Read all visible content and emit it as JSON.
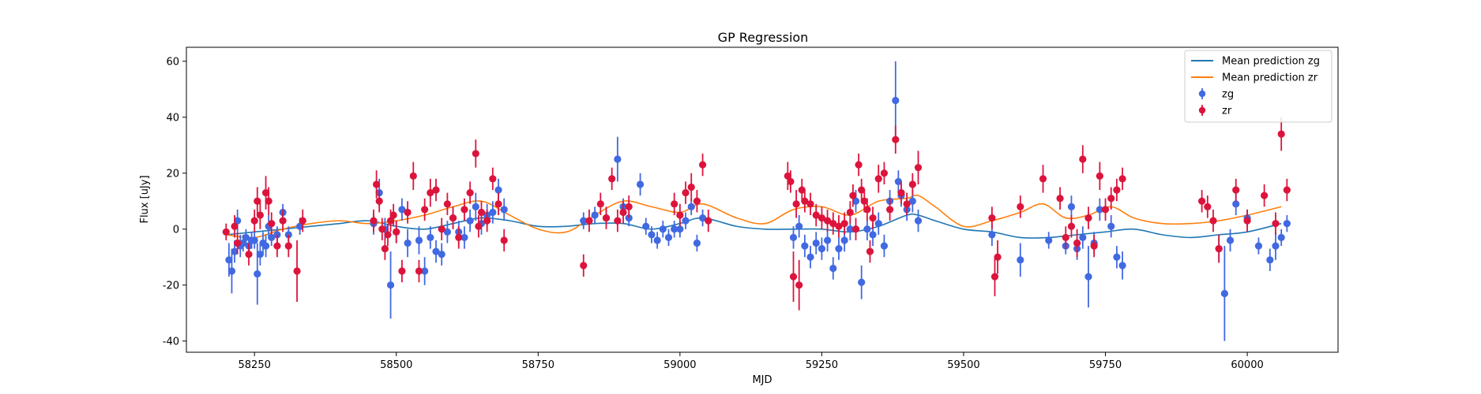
{
  "chart_data": {
    "type": "scatter",
    "title": "GP Regression",
    "xlabel": "MJD",
    "ylabel": "Flux [uJy]",
    "xlim": [
      58130,
      60160
    ],
    "ylim": [
      -44,
      65
    ],
    "xticks": [
      58250,
      58500,
      58750,
      59000,
      59250,
      59500,
      59750,
      60000
    ],
    "yticks": [
      -40,
      -20,
      0,
      20,
      40,
      60
    ],
    "grid": false,
    "legend_position": "top-right",
    "legend": [
      {
        "label": "Mean prediction zg",
        "kind": "line",
        "color": "#1f77b4"
      },
      {
        "label": "Mean prediction zr",
        "kind": "line",
        "color": "#ff7f0e"
      },
      {
        "label": "zg",
        "kind": "errorbar",
        "color": "#4169e1"
      },
      {
        "label": "zr",
        "kind": "errorbar",
        "color": "#dc143c"
      }
    ],
    "series": [
      {
        "name": "Mean prediction zg",
        "kind": "line",
        "color": "#1f77b4",
        "x": [
          58200,
          58250,
          58300,
          58350,
          58400,
          58450,
          58500,
          58550,
          58600,
          58650,
          58700,
          58750,
          58800,
          58850,
          58900,
          58950,
          59000,
          59040,
          59100,
          59150,
          59200,
          59250,
          59300,
          59350,
          59400,
          59420,
          59450,
          59500,
          59550,
          59600,
          59650,
          59700,
          59750,
          59800,
          59850,
          59900,
          59950,
          60000,
          60060
        ],
        "y": [
          -2,
          -1,
          0,
          1,
          2,
          3,
          1,
          0,
          2,
          4,
          3,
          1,
          1,
          2,
          2,
          0,
          2,
          4,
          1,
          0,
          0,
          0,
          -1,
          1,
          5,
          5,
          3,
          0,
          -1,
          -3,
          -3,
          -2,
          -1,
          0,
          -2,
          -3,
          -2,
          -1,
          2
        ]
      },
      {
        "name": "Mean prediction zr",
        "kind": "line",
        "color": "#ff7f0e",
        "x": [
          58200,
          58250,
          58300,
          58350,
          58400,
          58450,
          58500,
          58550,
          58600,
          58650,
          58700,
          58750,
          58800,
          58850,
          58900,
          58950,
          59000,
          59040,
          59100,
          59150,
          59200,
          59250,
          59300,
          59350,
          59400,
          59420,
          59450,
          59500,
          59550,
          59600,
          59640,
          59680,
          59720,
          59760,
          59800,
          59850,
          59900,
          59950,
          60000,
          60060
        ],
        "y": [
          -2,
          -3,
          0,
          2,
          3,
          2,
          3,
          5,
          8,
          10,
          5,
          0,
          -1,
          5,
          10,
          8,
          6,
          9,
          4,
          2,
          7,
          8,
          5,
          10,
          11,
          12,
          8,
          1,
          3,
          6,
          9,
          4,
          5,
          8,
          4,
          2,
          2,
          3,
          5,
          8
        ]
      },
      {
        "name": "zg",
        "kind": "errorbar",
        "color": "#4169e1",
        "x": [
          58205,
          58210,
          58215,
          58220,
          58225,
          58230,
          58235,
          58240,
          58245,
          58250,
          58255,
          58260,
          58265,
          58270,
          58275,
          58280,
          58290,
          58300,
          58310,
          58330,
          58460,
          58470,
          58480,
          58490,
          58500,
          58510,
          58520,
          58540,
          58550,
          58560,
          58570,
          58580,
          58590,
          58600,
          58610,
          58620,
          58630,
          58640,
          58650,
          58660,
          58670,
          58680,
          58690,
          58830,
          58850,
          58870,
          58890,
          58900,
          58910,
          58930,
          58940,
          58950,
          58960,
          58970,
          58980,
          58990,
          59000,
          59010,
          59020,
          59030,
          59040,
          59200,
          59210,
          59220,
          59230,
          59240,
          59250,
          59260,
          59270,
          59280,
          59290,
          59300,
          59310,
          59320,
          59330,
          59340,
          59350,
          59360,
          59370,
          59380,
          59385,
          59390,
          59400,
          59410,
          59420,
          59550,
          59600,
          59650,
          59680,
          59690,
          59700,
          59710,
          59720,
          59730,
          59740,
          59760,
          59770,
          59780,
          59950,
          59960,
          59970,
          59980,
          60000,
          60020,
          60040,
          60050,
          60060,
          60070
        ],
        "y": [
          -11,
          -15,
          -8,
          3,
          -6,
          -5,
          -3,
          -6,
          -4,
          -4,
          -16,
          -9,
          -5,
          -6,
          1,
          -3,
          -2,
          6,
          -2,
          1,
          2,
          13,
          0,
          -20,
          -1,
          7,
          -5,
          -4,
          -15,
          -3,
          -8,
          -9,
          -1,
          4,
          -1,
          -3,
          3,
          8,
          2,
          5,
          6,
          14,
          7,
          3,
          5,
          4,
          25,
          8,
          4,
          16,
          1,
          -2,
          -4,
          0,
          -3,
          0,
          0,
          3,
          8,
          -5,
          4,
          -3,
          1,
          -6,
          -10,
          -5,
          -7,
          -4,
          -14,
          -7,
          -4,
          0,
          10,
          -19,
          0,
          -2,
          2,
          -6,
          10,
          46,
          17,
          12,
          7,
          10,
          3,
          -2,
          -11,
          -4,
          -6,
          8,
          -7,
          -3,
          -17,
          -5,
          7,
          1,
          -10,
          -13,
          -7,
          -23,
          -4,
          9,
          4,
          -6,
          -11,
          -6,
          -3,
          2
        ],
        "yerr": [
          6,
          8,
          4,
          4,
          4,
          3,
          3,
          3,
          3,
          3,
          11,
          4,
          4,
          4,
          4,
          3,
          3,
          3,
          3,
          3,
          4,
          5,
          4,
          12,
          4,
          4,
          5,
          5,
          5,
          4,
          4,
          4,
          4,
          4,
          4,
          4,
          4,
          5,
          4,
          4,
          4,
          4,
          4,
          3,
          3,
          3,
          8,
          3,
          3,
          4,
          3,
          3,
          3,
          3,
          3,
          3,
          3,
          3,
          3,
          3,
          3,
          4,
          4,
          4,
          4,
          4,
          4,
          4,
          4,
          4,
          4,
          4,
          4,
          6,
          4,
          4,
          4,
          4,
          4,
          14,
          4,
          4,
          4,
          4,
          4,
          4,
          6,
          3,
          3,
          4,
          4,
          4,
          11,
          4,
          4,
          4,
          4,
          5,
          5,
          17,
          4,
          4,
          3,
          3,
          4,
          5,
          3,
          3
        ]
      },
      {
        "name": "zr",
        "kind": "errorbar",
        "color": "#dc143c",
        "x": [
          58200,
          58215,
          58220,
          58240,
          58250,
          58255,
          58260,
          58270,
          58275,
          58280,
          58290,
          58300,
          58310,
          58325,
          58335,
          58460,
          58465,
          58470,
          58475,
          58480,
          58485,
          58490,
          58495,
          58500,
          58510,
          58520,
          58530,
          58540,
          58550,
          58560,
          58570,
          58580,
          58590,
          58600,
          58610,
          58620,
          58630,
          58640,
          58645,
          58650,
          58660,
          58670,
          58680,
          58690,
          58830,
          58840,
          58860,
          58870,
          58880,
          58890,
          58900,
          58910,
          58990,
          59000,
          59010,
          59020,
          59030,
          59040,
          59050,
          59190,
          59195,
          59200,
          59205,
          59210,
          59215,
          59220,
          59230,
          59240,
          59250,
          59260,
          59270,
          59280,
          59290,
          59300,
          59305,
          59310,
          59315,
          59320,
          59325,
          59330,
          59335,
          59340,
          59350,
          59360,
          59370,
          59380,
          59390,
          59400,
          59410,
          59420,
          59550,
          59555,
          59560,
          59600,
          59640,
          59670,
          59680,
          59690,
          59700,
          59710,
          59720,
          59730,
          59740,
          59750,
          59760,
          59770,
          59780,
          59920,
          59930,
          59940,
          59950,
          59980,
          60000,
          60030,
          60050,
          60060,
          60070
        ],
        "y": [
          -1,
          1,
          -5,
          -9,
          3,
          10,
          5,
          13,
          10,
          2,
          -6,
          3,
          -6,
          -15,
          3,
          3,
          16,
          10,
          0,
          -7,
          -2,
          3,
          5,
          -1,
          -15,
          6,
          19,
          -15,
          7,
          13,
          14,
          0,
          9,
          4,
          -3,
          7,
          13,
          27,
          1,
          6,
          3,
          18,
          9,
          -4,
          -13,
          3,
          9,
          4,
          18,
          3,
          6,
          8,
          9,
          5,
          13,
          15,
          10,
          23,
          3,
          19,
          17,
          -17,
          9,
          -20,
          14,
          10,
          9,
          5,
          4,
          3,
          2,
          1,
          2,
          6,
          12,
          0,
          23,
          14,
          10,
          7,
          -8,
          4,
          18,
          20,
          7,
          32,
          13,
          9,
          16,
          22,
          4,
          -17,
          -10,
          8,
          18,
          11,
          -3,
          1,
          -5,
          25,
          4,
          -6,
          19,
          7,
          11,
          14,
          18,
          10,
          8,
          3,
          -7,
          14,
          3,
          12,
          2,
          34,
          14
        ],
        "yerr": [
          3,
          4,
          4,
          4,
          4,
          5,
          5,
          6,
          5,
          4,
          4,
          4,
          4,
          11,
          4,
          4,
          5,
          4,
          4,
          4,
          4,
          4,
          4,
          4,
          4,
          4,
          5,
          4,
          4,
          5,
          4,
          4,
          4,
          4,
          4,
          4,
          4,
          5,
          4,
          4,
          4,
          4,
          4,
          4,
          4,
          4,
          4,
          4,
          4,
          4,
          4,
          4,
          4,
          4,
          4,
          5,
          4,
          4,
          4,
          5,
          4,
          9,
          5,
          9,
          4,
          4,
          4,
          4,
          4,
          4,
          4,
          4,
          4,
          4,
          4,
          4,
          4,
          4,
          4,
          4,
          4,
          4,
          5,
          4,
          4,
          5,
          4,
          4,
          4,
          6,
          4,
          7,
          6,
          4,
          5,
          4,
          4,
          4,
          5,
          5,
          4,
          4,
          5,
          4,
          4,
          4,
          4,
          4,
          4,
          4,
          5,
          4,
          4,
          4,
          4,
          6,
          4
        ]
      }
    ]
  }
}
